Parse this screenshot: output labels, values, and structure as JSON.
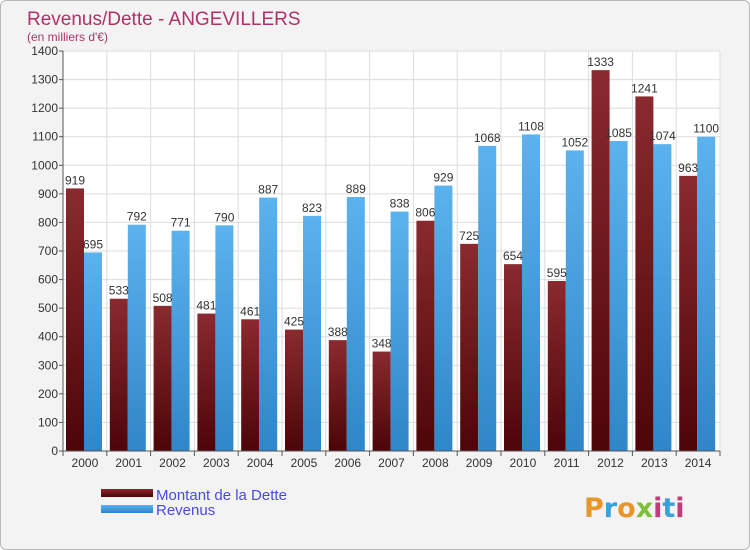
{
  "chart_data": {
    "type": "bar",
    "title": "Revenus/Dette - ANGEVILLERS",
    "subtitle": "(en milliers d'€)",
    "categories": [
      "2000",
      "2001",
      "2002",
      "2003",
      "2004",
      "2005",
      "2006",
      "2007",
      "2008",
      "2009",
      "2010",
      "2011",
      "2012",
      "2013",
      "2014"
    ],
    "series": [
      {
        "name": "Montant de la Dette",
        "color": "#7a1d22",
        "values": [
          919,
          533,
          508,
          481,
          461,
          425,
          388,
          348,
          806,
          725,
          654,
          595,
          1333,
          1241,
          963
        ]
      },
      {
        "name": "Revenus",
        "color": "#3f9fe3",
        "values": [
          695,
          792,
          771,
          790,
          887,
          823,
          889,
          838,
          929,
          1068,
          1108,
          1052,
          1085,
          1074,
          1100
        ]
      }
    ],
    "ylim": [
      0,
      1400
    ],
    "ytick_step": 100,
    "grid": true,
    "legend_position": "bottom-left"
  },
  "branding": {
    "logo_text": "Proxiti"
  },
  "colors": {
    "title": "#b0306a",
    "legend_text": "#4a4adf",
    "grid": "#dcdcdc",
    "axis": "#555555"
  }
}
